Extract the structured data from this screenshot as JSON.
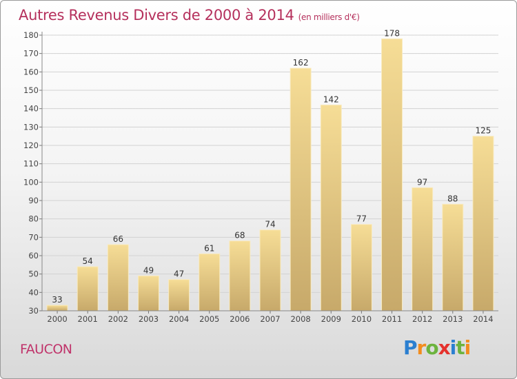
{
  "header": {
    "title": "Autres Revenus Divers de 2000 à 2014",
    "unit": "(en milliers d'€)"
  },
  "footer": {
    "place": "FAUCON",
    "logo": {
      "letters": [
        "P",
        "r",
        "o",
        "x",
        "i",
        "t",
        "i"
      ],
      "colors": [
        "#2b7fd0",
        "#f28c1d",
        "#6cb33e",
        "#e5322d",
        "#2b7fd0",
        "#6cb33e",
        "#f28c1d"
      ]
    }
  },
  "chart_data": {
    "type": "bar",
    "categories": [
      "2000",
      "2001",
      "2002",
      "2003",
      "2004",
      "2005",
      "2006",
      "2007",
      "2008",
      "2009",
      "2010",
      "2011",
      "2012",
      "2013",
      "2014"
    ],
    "values": [
      33,
      54,
      66,
      49,
      47,
      61,
      68,
      74,
      162,
      142,
      77,
      178,
      97,
      88,
      125
    ],
    "data_labels": [
      "33",
      "54",
      "66",
      "49",
      "47",
      "61",
      "68",
      "74",
      "162",
      "142",
      "77",
      "178",
      "97",
      "88",
      "125"
    ],
    "title": "Autres Revenus Divers de 2000 à 2014",
    "xlabel": "",
    "ylabel": "",
    "ylim": [
      30,
      180
    ],
    "yticks": [
      30,
      40,
      50,
      60,
      70,
      80,
      90,
      100,
      110,
      120,
      130,
      140,
      150,
      160,
      170,
      180
    ],
    "grid": true,
    "legend": "none",
    "bar_color": "#e9cf85"
  }
}
